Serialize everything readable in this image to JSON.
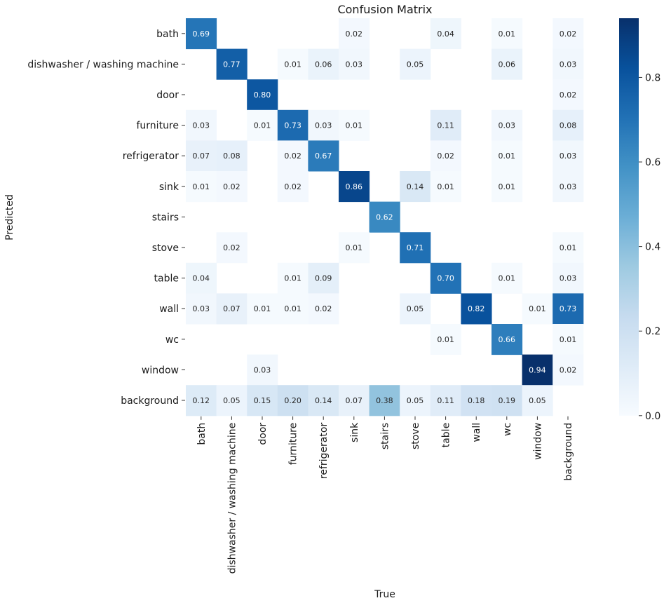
{
  "chart_data": {
    "type": "heatmap",
    "title": "Confusion Matrix",
    "xlabel": "True",
    "ylabel": "Predicted",
    "row_labels": [
      "bath",
      "dishwasher / washing machine",
      "door",
      "furniture",
      "refrigerator",
      "sink",
      "stairs",
      "stove",
      "table",
      "wall",
      "wc",
      "window",
      "background"
    ],
    "col_labels": [
      "bath",
      "dishwasher / washing machine",
      "door",
      "furniture",
      "refrigerator",
      "sink",
      "stairs",
      "stove",
      "table",
      "wall",
      "wc",
      "window",
      "background"
    ],
    "values": [
      [
        0.69,
        null,
        null,
        null,
        null,
        0.02,
        null,
        null,
        0.04,
        null,
        0.01,
        null,
        0.02
      ],
      [
        null,
        0.77,
        null,
        0.01,
        0.06,
        0.03,
        null,
        0.05,
        null,
        null,
        0.06,
        null,
        0.03
      ],
      [
        null,
        null,
        0.8,
        null,
        null,
        null,
        null,
        null,
        null,
        null,
        null,
        null,
        0.02
      ],
      [
        0.03,
        null,
        0.01,
        0.73,
        0.03,
        0.01,
        null,
        null,
        0.11,
        null,
        0.03,
        null,
        0.08
      ],
      [
        0.07,
        0.08,
        null,
        0.02,
        0.67,
        null,
        null,
        null,
        0.02,
        null,
        0.01,
        null,
        0.03
      ],
      [
        0.01,
        0.02,
        null,
        0.02,
        null,
        0.86,
        null,
        0.14,
        0.01,
        null,
        0.01,
        null,
        0.03
      ],
      [
        null,
        null,
        null,
        null,
        null,
        null,
        0.62,
        null,
        null,
        null,
        null,
        null,
        null
      ],
      [
        null,
        0.02,
        null,
        null,
        null,
        0.01,
        null,
        0.71,
        null,
        null,
        null,
        null,
        0.01
      ],
      [
        0.04,
        null,
        null,
        0.01,
        0.09,
        null,
        null,
        null,
        0.7,
        null,
        0.01,
        null,
        0.03
      ],
      [
        0.03,
        0.07,
        0.01,
        0.01,
        0.02,
        null,
        null,
        0.05,
        null,
        0.82,
        null,
        0.01,
        0.73
      ],
      [
        null,
        null,
        null,
        null,
        null,
        null,
        null,
        null,
        0.01,
        null,
        0.66,
        null,
        0.01
      ],
      [
        null,
        null,
        0.03,
        null,
        null,
        null,
        null,
        null,
        null,
        null,
        null,
        0.94,
        0.02
      ],
      [
        0.12,
        0.05,
        0.15,
        0.2,
        0.14,
        0.07,
        0.38,
        0.05,
        0.11,
        0.18,
        0.19,
        0.05,
        null
      ]
    ],
    "value_format": "0.00",
    "colorbar": {
      "cmap": "Blues",
      "vmin": 0.0,
      "vmax": 0.94,
      "ticks": [
        0.0,
        0.2,
        0.4,
        0.6,
        0.8
      ],
      "tick_labels": [
        "0.0",
        "0.2",
        "0.4",
        "0.6",
        "0.8"
      ]
    }
  }
}
